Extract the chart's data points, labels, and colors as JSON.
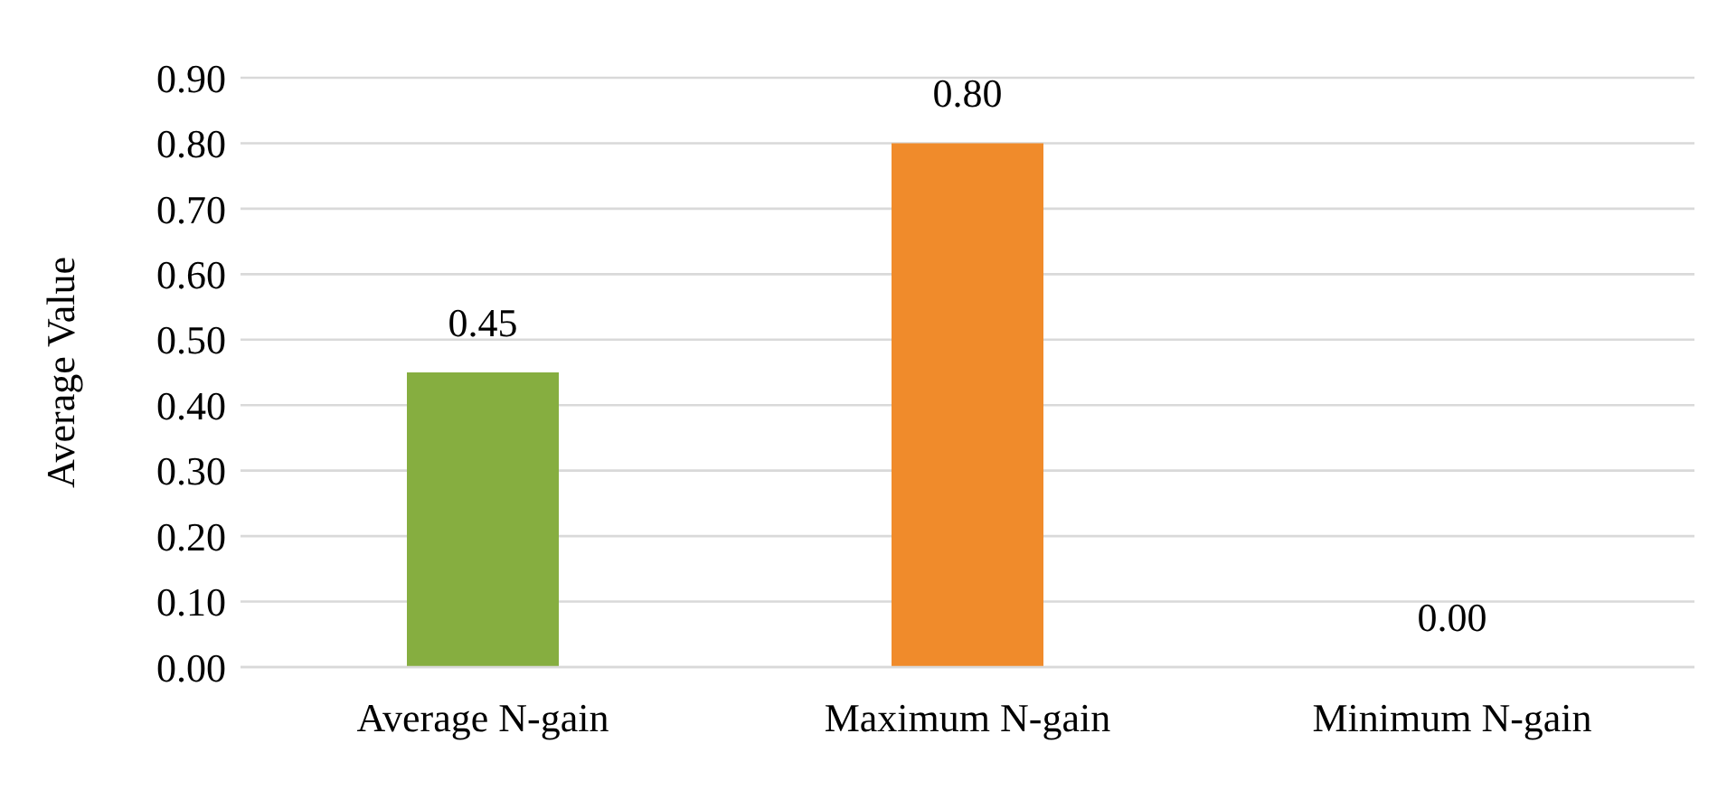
{
  "chart_data": {
    "type": "bar",
    "ylabel": "Average Value",
    "categories": [
      "Average N-gain",
      "Maximum N-gain",
      "Minimum N-gain"
    ],
    "values": [
      0.45,
      0.8,
      0
    ],
    "value_labels": [
      "0.45",
      "0.80",
      "0.00"
    ],
    "colors": [
      "#86ae40",
      "#f08b2b",
      "#a5a5a5"
    ],
    "ylim": [
      0,
      0.9
    ],
    "yticks": [
      {
        "value": 0,
        "label": "0.00"
      },
      {
        "value": 0.1,
        "label": "0.10"
      },
      {
        "value": 0.2,
        "label": "0.20"
      },
      {
        "value": 0.3,
        "label": "0.30"
      },
      {
        "value": 0.4,
        "label": "0.40"
      },
      {
        "value": 0.5,
        "label": "0.50"
      },
      {
        "value": 0.6,
        "label": "0.60"
      },
      {
        "value": 0.7,
        "label": "0.70"
      },
      {
        "value": 0.8,
        "label": "0.80"
      },
      {
        "value": 0.9,
        "label": "0.90"
      }
    ],
    "grid": "y",
    "legend": false
  }
}
